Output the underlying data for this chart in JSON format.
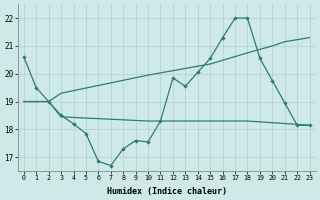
{
  "bg_color": "#cfe9e9",
  "grid_color": "#b0d4d4",
  "line_color": "#2d7d6e",
  "xlabel": "Humidex (Indice chaleur)",
  "ylim": [
    16.5,
    22.5
  ],
  "xlim": [
    -0.5,
    23.5
  ],
  "yticks": [
    17,
    18,
    19,
    20,
    21,
    22
  ],
  "xticks": [
    0,
    1,
    2,
    3,
    4,
    5,
    6,
    7,
    8,
    9,
    10,
    11,
    12,
    13,
    14,
    15,
    16,
    17,
    18,
    19,
    20,
    21,
    22,
    23
  ],
  "curve1_x": [
    0,
    1,
    2,
    3,
    4,
    5,
    6,
    7,
    8,
    9,
    10,
    11,
    12,
    13,
    14,
    15,
    16,
    17,
    18,
    19,
    20,
    21,
    22,
    23
  ],
  "curve1_y": [
    20.6,
    19.5,
    19.0,
    18.5,
    18.2,
    17.85,
    16.85,
    16.7,
    17.3,
    17.6,
    17.55,
    18.3,
    19.85,
    19.55,
    20.05,
    20.55,
    21.3,
    22.0,
    22.0,
    20.55,
    19.75,
    18.95,
    18.15,
    18.15
  ],
  "curve2_x": [
    0,
    2,
    3,
    10,
    18,
    23
  ],
  "curve2_y": [
    19.0,
    19.0,
    18.45,
    18.3,
    18.3,
    18.15
  ],
  "curve3_x": [
    0,
    2,
    3,
    10,
    15,
    18,
    20,
    21,
    23
  ],
  "curve3_y": [
    19.0,
    19.0,
    19.3,
    19.95,
    20.35,
    20.75,
    21.0,
    21.15,
    21.3
  ]
}
